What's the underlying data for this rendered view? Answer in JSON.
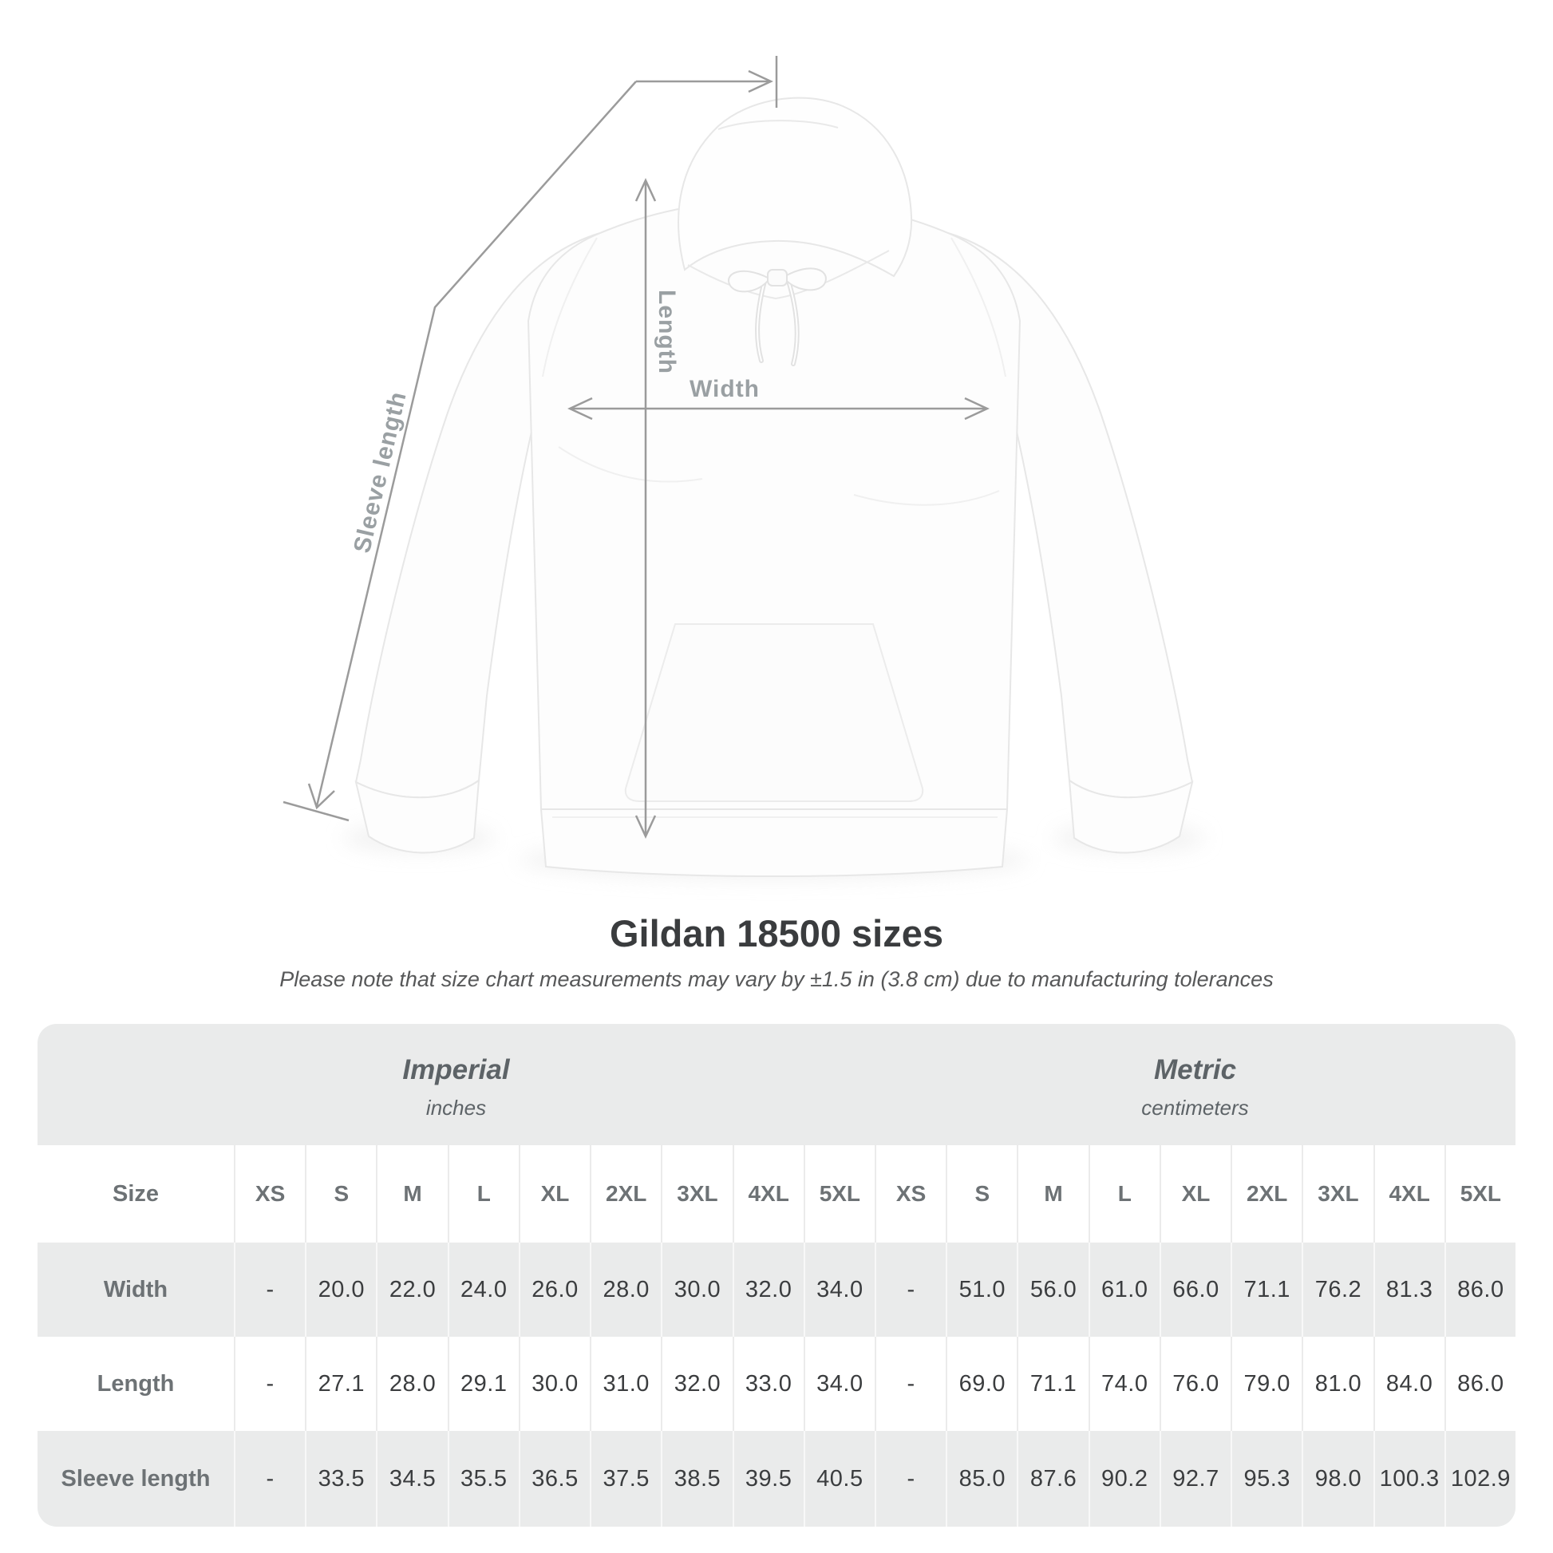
{
  "diagram": {
    "labels": {
      "length": "Length",
      "width": "Width",
      "sleeve": "Sleeve length"
    },
    "colors": {
      "measure_line": "#9b9b9b",
      "measure_label": "#9aa0a3"
    }
  },
  "title": "Gildan 18500 sizes",
  "subtitle": "Please note that size chart measurements may vary by ±1.5 in (3.8 cm) due to manufacturing tolerances",
  "size_table": {
    "groups": [
      {
        "label": "Imperial",
        "sublabel": "inches"
      },
      {
        "label": "Metric",
        "sublabel": "centimeters"
      }
    ],
    "size_header": "Size",
    "sizes": [
      "XS",
      "S",
      "M",
      "L",
      "XL",
      "2XL",
      "3XL",
      "4XL",
      "5XL"
    ],
    "rows": [
      {
        "label": "Width",
        "imperial": [
          "-",
          "20.0",
          "22.0",
          "24.0",
          "26.0",
          "28.0",
          "30.0",
          "32.0",
          "34.0"
        ],
        "metric": [
          "-",
          "51.0",
          "56.0",
          "61.0",
          "66.0",
          "71.1",
          "76.2",
          "81.3",
          "86.0"
        ]
      },
      {
        "label": "Length",
        "imperial": [
          "-",
          "27.1",
          "28.0",
          "29.1",
          "30.0",
          "31.0",
          "32.0",
          "33.0",
          "34.0"
        ],
        "metric": [
          "-",
          "69.0",
          "71.1",
          "74.0",
          "76.0",
          "79.0",
          "81.0",
          "84.0",
          "86.0"
        ]
      },
      {
        "label": "Sleeve length",
        "imperial": [
          "-",
          "33.5",
          "34.5",
          "35.5",
          "36.5",
          "37.5",
          "38.5",
          "39.5",
          "40.5"
        ],
        "metric": [
          "-",
          "85.0",
          "87.6",
          "90.2",
          "92.7",
          "95.3",
          "98.0",
          "100.3",
          "102.9"
        ]
      }
    ],
    "colors": {
      "band": "#eaebeb",
      "header_text": "#6d7275",
      "value_text": "#3b3d3f"
    }
  }
}
